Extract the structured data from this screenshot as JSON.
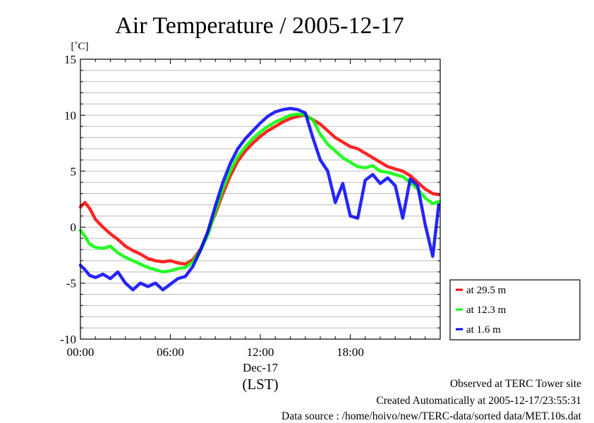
{
  "chart_data": {
    "type": "line",
    "title": "Air Temperature / 2005-12-17",
    "ylabel": "[˚C]",
    "xlabel": "(LST)",
    "date_label": "Dec-17",
    "ylim": [
      -10,
      15
    ],
    "y_ticks": [
      "15",
      "10",
      "5",
      "0",
      "-5",
      "-10"
    ],
    "xlim": [
      0,
      24
    ],
    "x_ticks": [
      {
        "label": "00:00",
        "hour": 0
      },
      {
        "label": "06:00",
        "hour": 6
      },
      {
        "label": "12:00",
        "hour": 12
      },
      {
        "label": "18:00",
        "hour": 18
      }
    ],
    "grid": true,
    "legend_position": "right",
    "series": [
      {
        "name": "at 29.5 m",
        "color": "#ff0000",
        "x": [
          0,
          0.3,
          0.6,
          1,
          1.5,
          2,
          2.5,
          3,
          3.5,
          4,
          4.5,
          5,
          5.5,
          6,
          6.5,
          7,
          7.5,
          8,
          8.5,
          9,
          9.5,
          10,
          10.5,
          11,
          11.5,
          12,
          12.5,
          13,
          13.5,
          14,
          14.5,
          15,
          15.5,
          16,
          16.5,
          17,
          17.5,
          18,
          18.5,
          19,
          19.5,
          20,
          20.5,
          21,
          21.5,
          22,
          22.5,
          23,
          23.5,
          23.9
        ],
        "y": [
          1.8,
          2.2,
          1.7,
          0.7,
          0,
          -0.6,
          -1.1,
          -1.7,
          -2.1,
          -2.4,
          -2.8,
          -3.0,
          -3.1,
          -3.0,
          -3.2,
          -3.3,
          -2.9,
          -2.0,
          -0.5,
          1.2,
          3.0,
          4.6,
          5.9,
          6.8,
          7.5,
          8.1,
          8.6,
          9.0,
          9.4,
          9.7,
          9.9,
          10.0,
          9.6,
          9.2,
          8.6,
          8.0,
          7.6,
          7.2,
          7.0,
          6.6,
          6.2,
          5.8,
          5.4,
          5.2,
          5.0,
          4.6,
          4.0,
          3.4,
          3.0,
          2.9
        ]
      },
      {
        "name": "at 12.3 m",
        "color": "#00ff00",
        "x": [
          0,
          0.3,
          0.6,
          1,
          1.5,
          2,
          2.5,
          3,
          3.5,
          4,
          4.5,
          5,
          5.5,
          6,
          6.5,
          7,
          7.5,
          8,
          8.5,
          9,
          9.5,
          10,
          10.5,
          11,
          11.5,
          12,
          12.5,
          13,
          13.5,
          14,
          14.5,
          15,
          15.5,
          16,
          16.5,
          17,
          17.5,
          18,
          18.5,
          19,
          19.5,
          20,
          20.5,
          21,
          21.5,
          22,
          22.5,
          23,
          23.5,
          23.9
        ],
        "y": [
          -0.3,
          -0.8,
          -1.5,
          -1.8,
          -1.9,
          -1.7,
          -2.3,
          -2.7,
          -3.0,
          -3.3,
          -3.6,
          -3.8,
          -4.0,
          -3.9,
          -3.7,
          -3.6,
          -3.1,
          -2.1,
          -0.7,
          1.4,
          3.4,
          5.0,
          6.3,
          7.2,
          7.9,
          8.5,
          9.0,
          9.4,
          9.7,
          10.0,
          10.1,
          10.0,
          9.6,
          8.3,
          7.4,
          6.8,
          6.2,
          5.8,
          5.4,
          5.3,
          5.5,
          5.0,
          4.9,
          4.7,
          4.5,
          4.0,
          3.4,
          2.6,
          2.1,
          2.3
        ]
      },
      {
        "name": "at 1.6 m",
        "color": "#0000ff",
        "x": [
          0,
          0.3,
          0.6,
          1,
          1.5,
          2,
          2.5,
          3,
          3.5,
          4,
          4.5,
          5,
          5.5,
          6,
          6.5,
          7,
          7.5,
          8,
          8.5,
          9,
          9.5,
          10,
          10.5,
          11,
          11.5,
          12,
          12.5,
          13,
          13.5,
          14,
          14.5,
          15,
          15.5,
          16,
          16.5,
          17,
          17.5,
          18,
          18.5,
          19,
          19.5,
          20,
          20.5,
          21,
          21.5,
          22,
          22.5,
          23,
          23.5,
          23.9
        ],
        "y": [
          -3.4,
          -3.8,
          -4.3,
          -4.5,
          -4.2,
          -4.6,
          -4.0,
          -5.0,
          -5.6,
          -5.0,
          -5.3,
          -5.0,
          -5.6,
          -5.1,
          -4.6,
          -4.4,
          -3.5,
          -2.1,
          -0.4,
          1.9,
          4.0,
          5.7,
          7.0,
          7.9,
          8.6,
          9.3,
          9.9,
          10.3,
          10.5,
          10.6,
          10.5,
          10.2,
          8.0,
          6.0,
          5.0,
          2.2,
          3.9,
          1.0,
          0.8,
          4.2,
          4.7,
          3.9,
          4.4,
          3.7,
          0.8,
          4.3,
          3.7,
          0.2,
          -2.6,
          2.0
        ]
      }
    ]
  },
  "footer": {
    "line1": "Observed at TERC Tower site",
    "line2": "Created Automatically at 2005-12-17/23:55:31",
    "line3": "Data source : /home/hoivo/new/TERC-data/sorted  data/MET.10s.dat"
  }
}
